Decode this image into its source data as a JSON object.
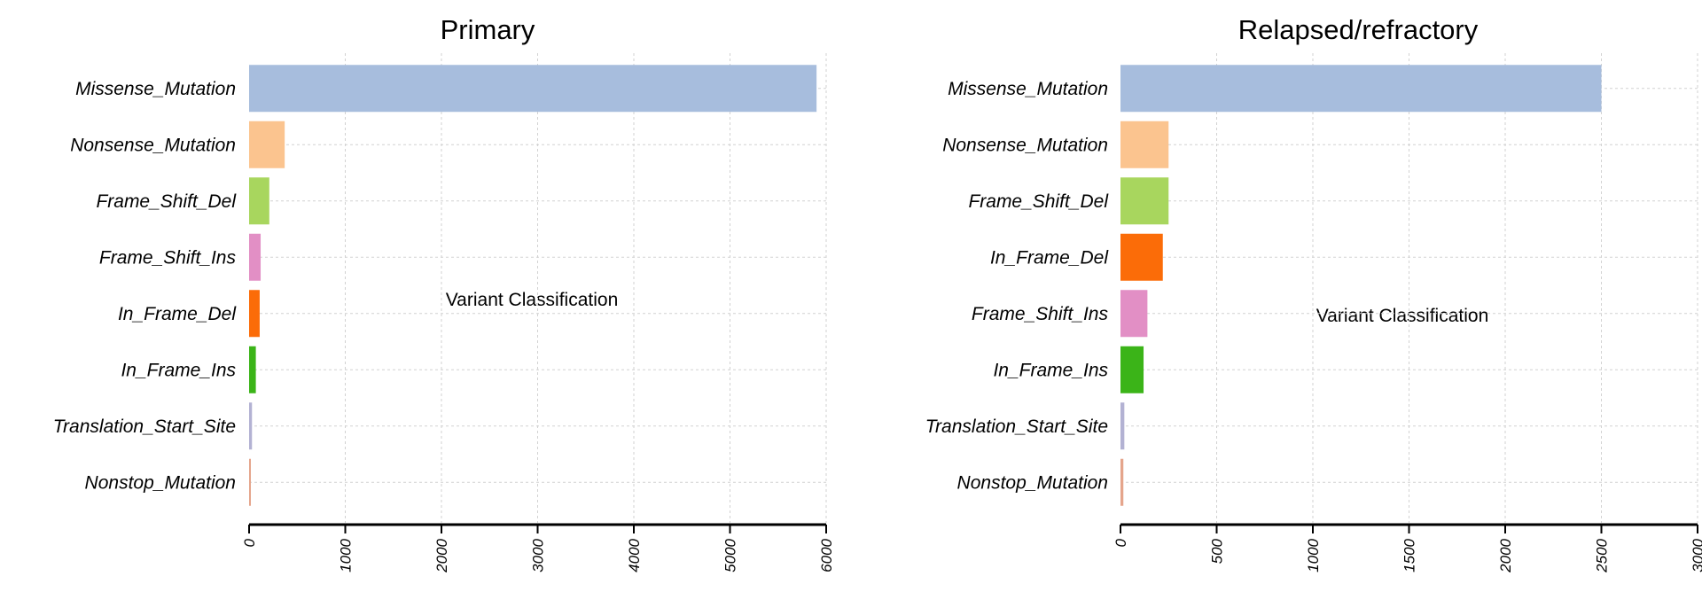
{
  "chart_data": [
    {
      "type": "bar",
      "orientation": "horizontal",
      "title": "Primary",
      "annotation": "Variant Classification",
      "categories": [
        "Missense_Mutation",
        "Nonsense_Mutation",
        "Frame_Shift_Del",
        "Frame_Shift_Ins",
        "In_Frame_Del",
        "In_Frame_Ins",
        "Translation_Start_Site",
        "Nonstop_Mutation"
      ],
      "values": [
        5900,
        370,
        210,
        120,
        110,
        70,
        30,
        10
      ],
      "colors": [
        "#a7bddd",
        "#fbc48f",
        "#a8d65e",
        "#e28fc5",
        "#fb6c08",
        "#3bb418",
        "#b3b2d3",
        "#e5a58c"
      ],
      "xlim": [
        0,
        6000
      ],
      "xticks": [
        0,
        1000,
        2000,
        3000,
        4000,
        5000,
        6000
      ],
      "xtick_labels": [
        "0",
        "1000",
        "2000",
        "3000",
        "4000",
        "5000",
        "6000"
      ],
      "grid": true
    },
    {
      "type": "bar",
      "orientation": "horizontal",
      "title": "Relapsed/refractory",
      "annotation": "Variant Classification",
      "categories": [
        "Missense_Mutation",
        "Nonsense_Mutation",
        "Frame_Shift_Del",
        "In_Frame_Del",
        "Frame_Shift_Ins",
        "In_Frame_Ins",
        "Translation_Start_Site",
        "Nonstop_Mutation"
      ],
      "values": [
        2500,
        250,
        250,
        220,
        140,
        120,
        20,
        15
      ],
      "colors": [
        "#a7bddd",
        "#fbc48f",
        "#a8d65e",
        "#fb6c08",
        "#e28fc5",
        "#3bb418",
        "#b3b2d3",
        "#e5a58c"
      ],
      "xlim": [
        0,
        3000
      ],
      "xticks": [
        0,
        500,
        1000,
        1500,
        2000,
        2500,
        3000
      ],
      "xtick_labels": [
        "0",
        "500",
        "1000",
        "1500",
        "2000",
        "2500",
        "3000"
      ],
      "grid": true
    }
  ]
}
